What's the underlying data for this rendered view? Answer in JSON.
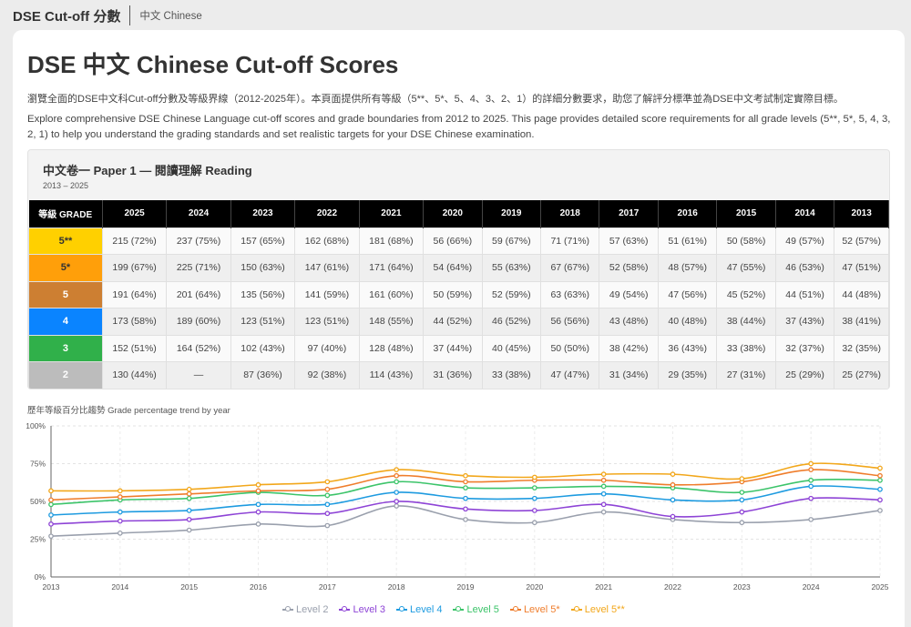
{
  "nav": {
    "brand": "DSE Cut-off 分數",
    "link": "中文 Chinese"
  },
  "page": {
    "title": "DSE 中文 Chinese Cut-off Scores",
    "intro_zh": "瀏覽全面的DSE中文科Cut-off分數及等級界線（2012-2025年）。本頁面提供所有等級（5**、5*、5、4、3、2、1）的詳細分數要求，助您了解評分標準並為DSE中文考試制定實際目標。",
    "intro_en": "Explore comprehensive DSE Chinese Language cut-off scores and grade boundaries from 2012 to 2025. This page provides detailed score requirements for all grade levels (5**, 5*, 5, 4, 3, 2, 1) to help you understand the grading standards and set realistic targets for your DSE Chinese examination."
  },
  "paper": {
    "title": "中文卷一 Paper 1 — 閱讀理解 Reading",
    "range": "2013 – 2025",
    "grade_header": "等級 GRADE",
    "years": [
      "2025",
      "2024",
      "2023",
      "2022",
      "2021",
      "2020",
      "2019",
      "2018",
      "2017",
      "2016",
      "2015",
      "2014",
      "2013"
    ],
    "rows": [
      {
        "grade": "5**",
        "bg": "#ffd000",
        "fg": "#333333",
        "cells": [
          "215 (72%)",
          "237 (75%)",
          "157 (65%)",
          "162 (68%)",
          "181 (68%)",
          "56 (66%)",
          "59 (67%)",
          "71 (71%)",
          "57 (63%)",
          "51 (61%)",
          "50 (58%)",
          "49 (57%)",
          "52 (57%)"
        ]
      },
      {
        "grade": "5*",
        "bg": "#ff9f0a",
        "fg": "#333333",
        "cells": [
          "199 (67%)",
          "225 (71%)",
          "150 (63%)",
          "147 (61%)",
          "171 (64%)",
          "54 (64%)",
          "55 (63%)",
          "67 (67%)",
          "52 (58%)",
          "48 (57%)",
          "47 (55%)",
          "46 (53%)",
          "47 (51%)"
        ]
      },
      {
        "grade": "5",
        "bg": "#cd7f32",
        "fg": "#ffffff",
        "cells": [
          "191 (64%)",
          "201 (64%)",
          "135 (56%)",
          "141 (59%)",
          "161 (60%)",
          "50 (59%)",
          "52 (59%)",
          "63 (63%)",
          "49 (54%)",
          "47 (56%)",
          "45 (52%)",
          "44 (51%)",
          "44 (48%)"
        ]
      },
      {
        "grade": "4",
        "bg": "#0a84ff",
        "fg": "#ffffff",
        "cells": [
          "173 (58%)",
          "189 (60%)",
          "123 (51%)",
          "123 (51%)",
          "148 (55%)",
          "44 (52%)",
          "46 (52%)",
          "56 (56%)",
          "43 (48%)",
          "40 (48%)",
          "38 (44%)",
          "37 (43%)",
          "38 (41%)"
        ]
      },
      {
        "grade": "3",
        "bg": "#30b04a",
        "fg": "#ffffff",
        "cells": [
          "152 (51%)",
          "164 (52%)",
          "102 (43%)",
          "97 (40%)",
          "128 (48%)",
          "37 (44%)",
          "40 (45%)",
          "50 (50%)",
          "38 (42%)",
          "36 (43%)",
          "33 (38%)",
          "32 (37%)",
          "32 (35%)"
        ]
      },
      {
        "grade": "2",
        "bg": "#bcbcbc",
        "fg": "#ffffff",
        "cells": [
          "130 (44%)",
          "—",
          "87 (36%)",
          "92 (38%)",
          "114 (43%)",
          "31 (36%)",
          "33 (38%)",
          "47 (47%)",
          "31 (34%)",
          "29 (35%)",
          "27 (31%)",
          "25 (29%)",
          "25 (27%)"
        ]
      }
    ]
  },
  "chart_title": "歷年等級百分比趨勢 Grade percentage trend by year",
  "chart_data": {
    "type": "line",
    "title": "歷年等級百分比趨勢 Grade percentage trend by year",
    "x": [
      "2013",
      "2014",
      "2015",
      "2016",
      "2017",
      "2018",
      "2019",
      "2020",
      "2021",
      "2022",
      "2023",
      "2024",
      "2025"
    ],
    "ylim": [
      0,
      100
    ],
    "yticks": [
      "0%",
      "25%",
      "50%",
      "75%",
      "100%"
    ],
    "grid": true,
    "legend_position": "bottom",
    "series": [
      {
        "name": "Level 2",
        "color": "#9aa0ad",
        "values": [
          27,
          29,
          31,
          35,
          34,
          47,
          38,
          36,
          43,
          38,
          36,
          38,
          44
        ]
      },
      {
        "name": "Level 3",
        "color": "#8e44d6",
        "values": [
          35,
          37,
          38,
          43,
          42,
          50,
          45,
          44,
          48,
          40,
          43,
          52,
          51
        ]
      },
      {
        "name": "Level 4",
        "color": "#1e9be0",
        "values": [
          41,
          43,
          44,
          48,
          48,
          56,
          52,
          52,
          55,
          51,
          51,
          60,
          58
        ]
      },
      {
        "name": "Level 5",
        "color": "#3cc46a",
        "values": [
          48,
          51,
          52,
          56,
          54,
          63,
          59,
          59,
          60,
          59,
          56,
          64,
          64
        ]
      },
      {
        "name": "Level 5*",
        "color": "#ef7d2c",
        "values": [
          51,
          53,
          55,
          57,
          58,
          67,
          63,
          64,
          64,
          61,
          63,
          71,
          67
        ]
      },
      {
        "name": "Level 5**",
        "color": "#f2a71b",
        "values": [
          57,
          57,
          58,
          61,
          63,
          71,
          67,
          66,
          68,
          68,
          65,
          75,
          72
        ]
      }
    ]
  }
}
